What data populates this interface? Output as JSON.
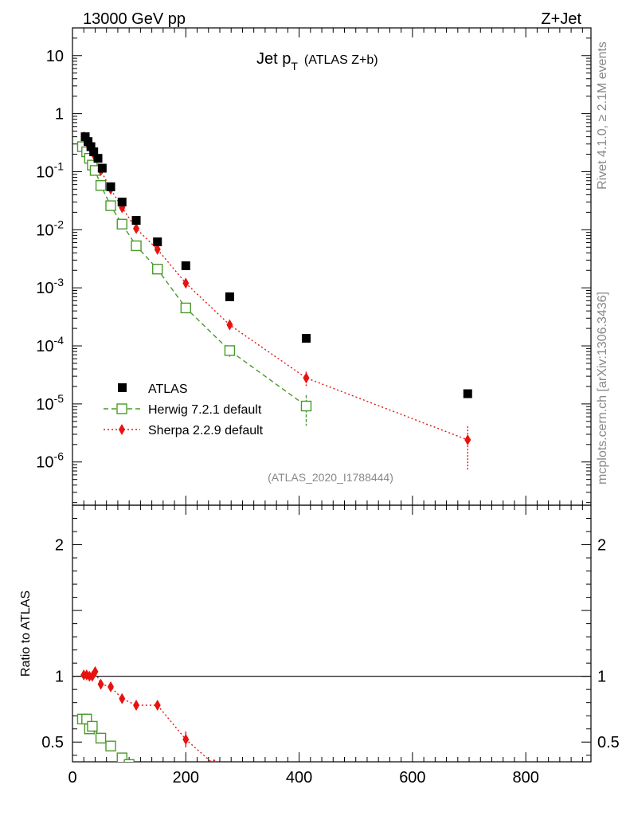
{
  "header": {
    "left": "13000 GeV pp",
    "right": "Z+Jet"
  },
  "side": {
    "rivet": "Rivet 4.1.0, ≥ 2.1M events",
    "mcplots": "mcplots.cern.ch [arXiv:1306.3436]"
  },
  "chart_data": [
    {
      "type": "scatter",
      "panel": "main",
      "title": "Jet p_T (ATLAS Z+b)",
      "title_main": "Jet p",
      "title_sub": "T",
      "title_extra": "(ATLAS Z+b)",
      "watermark": "(ATLAS_2020_I1788444)",
      "yscale": "log",
      "xlim": [
        0,
        915
      ],
      "ylim": [
        1.8e-07,
        30
      ],
      "ytick_labels": [
        {
          "value": 1e-06,
          "base": "10",
          "exp": "-6"
        },
        {
          "value": 1e-05,
          "base": "10",
          "exp": "-5"
        },
        {
          "value": 0.0001,
          "base": "10",
          "exp": "-4"
        },
        {
          "value": 0.001,
          "base": "10",
          "exp": "-3"
        },
        {
          "value": 0.01,
          "base": "10",
          "exp": "-2"
        },
        {
          "value": 0.1,
          "base": "10",
          "exp": "-1"
        },
        {
          "value": 1,
          "base": "1",
          "exp": ""
        },
        {
          "value": 10,
          "base": "10",
          "exp": ""
        }
      ],
      "legend": [
        "ATLAS",
        "Herwig 7.2.1 default",
        "Sherpa 2.2.9 default"
      ],
      "series": [
        {
          "name": "ATLAS",
          "color": "#000000",
          "x": [
            22.5,
            27.5,
            32.5,
            37.5,
            45,
            52.5,
            67.5,
            87.5,
            112.5,
            150,
            200,
            277.5,
            412.5,
            697.5
          ],
          "y": [
            0.4,
            0.33,
            0.27,
            0.22,
            0.17,
            0.115,
            0.055,
            0.03,
            0.0145,
            0.0062,
            0.0024,
            0.0007,
            0.000135,
            1.5e-05
          ]
        },
        {
          "name": "Herwig 7.2.1 default",
          "color": "#4a9a2a",
          "x": [
            17.5,
            25,
            30,
            35,
            40,
            50,
            67.5,
            87.5,
            112.5,
            150,
            200,
            277.5,
            412.5
          ],
          "y": [
            0.27,
            0.22,
            0.17,
            0.13,
            0.105,
            0.058,
            0.026,
            0.0125,
            0.0053,
            0.0021,
            0.00045,
            8.3e-05,
            9.2e-06
          ],
          "yerr": [
            0,
            0,
            0,
            0,
            0,
            0,
            0,
            0,
            0,
            0,
            0,
            1.8e-05,
            5e-06
          ]
        },
        {
          "name": "Sherpa 2.2.9 default",
          "color": "#e8120e",
          "x": [
            20,
            25,
            30,
            35,
            40,
            50,
            67.5,
            87.5,
            112.5,
            150,
            200,
            277.5,
            412.5,
            697.5
          ],
          "y": [
            0.4,
            0.33,
            0.27,
            0.22,
            0.18,
            0.105,
            0.05,
            0.024,
            0.0105,
            0.0046,
            0.0012,
            0.00023,
            2.8e-05,
            2.4e-06
          ],
          "yerr": [
            0,
            0,
            0,
            0,
            0,
            0,
            0,
            0,
            0,
            0,
            0,
            3e-05,
            8e-06,
            1.7e-06
          ]
        }
      ]
    },
    {
      "type": "scatter",
      "panel": "ratio",
      "ylabel": "Ratio to ATLAS",
      "xlim": [
        0,
        915
      ],
      "ylim": [
        0.35,
        2.3
      ],
      "xtick_labels": [
        {
          "value": 0,
          "label": "0"
        },
        {
          "value": 200,
          "label": "200"
        },
        {
          "value": 400,
          "label": "400"
        },
        {
          "value": 600,
          "label": "600"
        },
        {
          "value": 800,
          "label": "800"
        }
      ],
      "ytick_labels": [
        {
          "value": 0.5,
          "label": "0.5"
        },
        {
          "value": 1,
          "label": "1"
        },
        {
          "value": 2,
          "label": "2"
        }
      ],
      "series": [
        {
          "name": "Herwig 7.2.1 default",
          "color": "#4a9a2a",
          "x": [
            17.5,
            25,
            30,
            35,
            50,
            67.5,
            87.5,
            100
          ],
          "y": [
            0.675,
            0.675,
            0.6,
            0.62,
            0.53,
            0.47,
            0.38,
            0.33
          ]
        },
        {
          "name": "Sherpa 2.2.9 default",
          "color": "#e8120e",
          "x": [
            20,
            25,
            30,
            35,
            40,
            50,
            67.5,
            87.5,
            112.5,
            150,
            200,
            250
          ],
          "y": [
            1.01,
            1.01,
            1.0,
            1.0,
            1.035,
            0.94,
            0.92,
            0.83,
            0.78,
            0.78,
            0.52,
            0.33
          ],
          "yerr": [
            0,
            0,
            0,
            0,
            0,
            0,
            0,
            0,
            0.03,
            0.03,
            0.06,
            0
          ]
        }
      ]
    }
  ]
}
